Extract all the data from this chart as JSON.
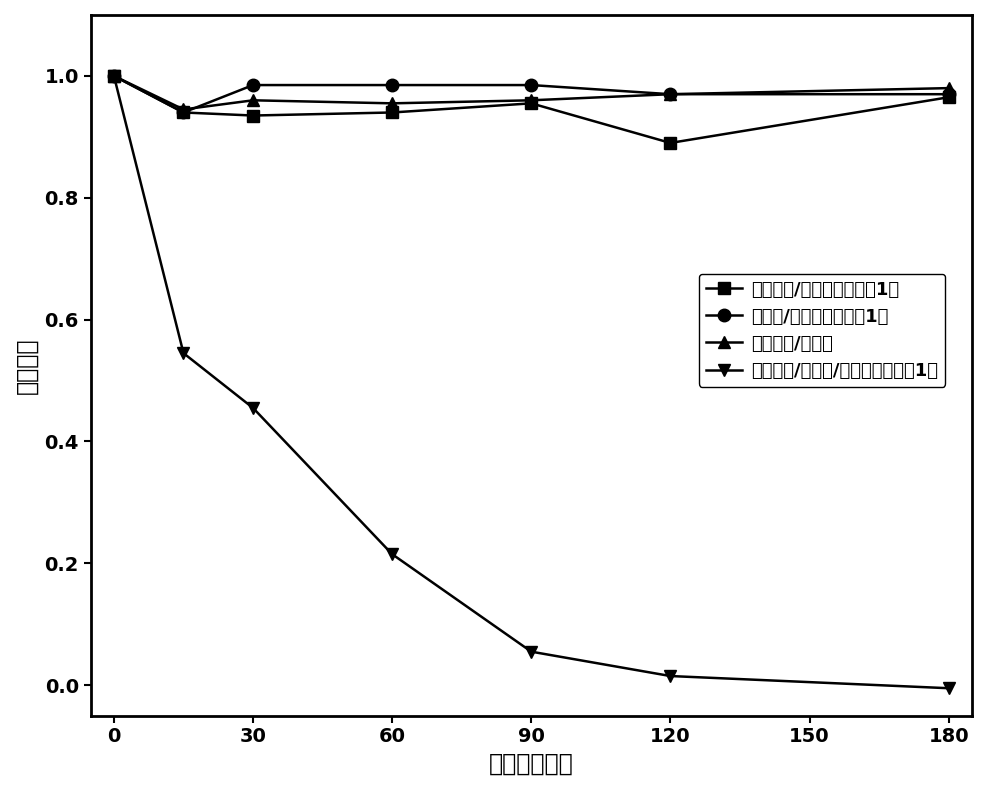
{
  "x": [
    0,
    15,
    30,
    60,
    90,
    120,
    180
  ],
  "series1_y": [
    1.0,
    0.94,
    0.935,
    0.94,
    0.955,
    0.89,
    0.965
  ],
  "series2_y": [
    1.0,
    0.94,
    0.985,
    0.985,
    0.985,
    0.97,
    0.97
  ],
  "series3_y": [
    1.0,
    0.945,
    0.96,
    0.955,
    0.96,
    0.97,
    0.98
  ],
  "series4_y": [
    1.0,
    0.545,
    0.455,
    0.215,
    0.055,
    0.015,
    -0.005
  ],
  "labels": [
    "过碳酸盐/天然铁锰氧化物1号",
    "双氧水/天然铁锰氧化物1号",
    "过碳酸盐/双氧水",
    "过碳酸盐/双氧水/天然铁锰氧化物1号"
  ],
  "markers": [
    "s",
    "o",
    "^",
    "v"
  ],
  "xlabel": "时间（分钟）",
  "ylabel": "浓度变化",
  "xticks": [
    0,
    30,
    60,
    90,
    120,
    150,
    180
  ],
  "ylim": [
    -0.05,
    1.1
  ],
  "xlim": [
    -5,
    185
  ],
  "color": "#000000",
  "linewidth": 1.8,
  "markersize": 9,
  "legend_fontsize": 13,
  "axis_label_fontsize": 17,
  "tick_fontsize": 14
}
